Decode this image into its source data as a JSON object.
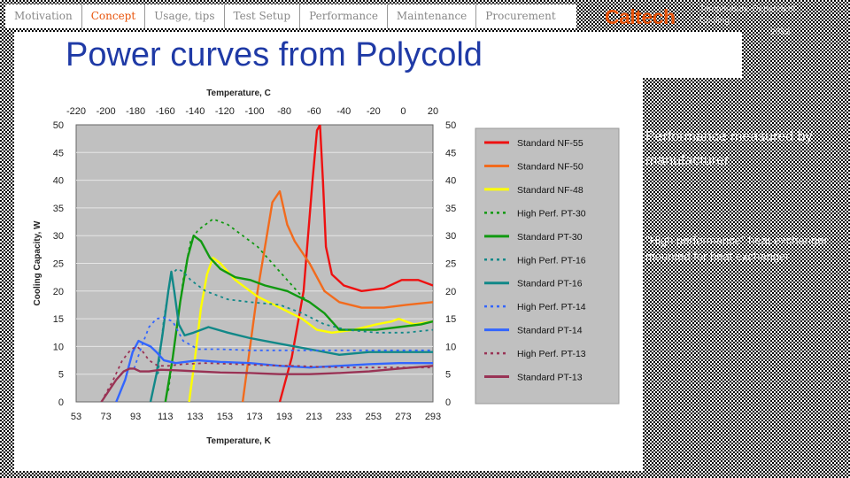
{
  "nav": {
    "tabs": [
      {
        "label": "Motivation",
        "active": false
      },
      {
        "label": "Concept",
        "active": true
      },
      {
        "label": "Usage, tips",
        "active": false
      },
      {
        "label": "Test Setup",
        "active": false
      },
      {
        "label": "Performance",
        "active": false
      },
      {
        "label": "Maintenance",
        "active": false
      },
      {
        "label": "Procurement",
        "active": false
      }
    ]
  },
  "header": {
    "logo": "Caltech",
    "meta_line1": "Temperature-Dependent",
    "meta_line2": "Cooling",
    "meta_line3": "2023"
  },
  "slide": {
    "title": "Power curves from Polycold",
    "note1": "Performance measured by manufacturer.",
    "note2": "\"High performance\" heat exchanger mounted for heat exchanger."
  },
  "colors": {
    "accent": "#e8530a",
    "title": "#1f3aa6",
    "plot_bg": "#c0c0c0",
    "legend_bg": "#c0c0c0"
  },
  "chart_data": {
    "type": "line",
    "title": "Temperature, C",
    "xlabel": "Temperature, K",
    "ylabel": "Cooling Capacity, W",
    "xlim": [
      53,
      293
    ],
    "ylim": [
      0,
      50
    ],
    "x_ticks": [
      53,
      73,
      93,
      113,
      133,
      153,
      173,
      193,
      213,
      233,
      253,
      273,
      293
    ],
    "top_ticks": [
      -220,
      -200,
      -180,
      -160,
      -140,
      -120,
      -100,
      -80,
      -60,
      -40,
      -20,
      0,
      20
    ],
    "y_ticks": [
      0,
      5,
      10,
      15,
      20,
      25,
      30,
      35,
      40,
      45,
      50
    ],
    "grid": true,
    "legend_position": "right",
    "series": [
      {
        "name": "Standard NF-55",
        "color": "#ee1111",
        "dash": false,
        "x": [
          190,
          198,
          206,
          212,
          215,
          217,
          219,
          221,
          225,
          233,
          245,
          260,
          272,
          283,
          293
        ],
        "y": [
          0,
          8,
          20,
          40,
          49,
          50,
          40,
          28,
          23,
          21,
          20,
          20.5,
          22,
          22,
          21
        ]
      },
      {
        "name": "Standard NF-50",
        "color": "#f26b1d",
        "dash": false,
        "x": [
          165,
          170,
          175,
          180,
          185,
          190,
          195,
          200,
          210,
          220,
          230,
          245,
          260,
          275,
          293
        ],
        "y": [
          0,
          10,
          20,
          28,
          36,
          38,
          32,
          29,
          25,
          20,
          18,
          17,
          17,
          17.5,
          18
        ]
      },
      {
        "name": "Standard NF-48",
        "color": "#ffff00",
        "dash": false,
        "x": [
          129,
          133,
          137,
          141,
          145,
          150,
          160,
          175,
          190,
          205,
          215,
          225,
          240,
          255,
          265,
          270,
          280,
          293
        ],
        "y": [
          0,
          8,
          17,
          23,
          26,
          25,
          22,
          19,
          17,
          15,
          13,
          12.5,
          13,
          14,
          14.5,
          15,
          14,
          14.5
        ]
      },
      {
        "name": "High Perf. PT-30",
        "color": "#119911",
        "dash": true,
        "x": [
          115,
          120,
          125,
          130,
          135,
          140,
          145,
          155,
          165,
          175,
          185,
          195,
          205,
          215
        ],
        "y": [
          2,
          12,
          22,
          29,
          31,
          32,
          33,
          32,
          30,
          28,
          25,
          22,
          19,
          17
        ]
      },
      {
        "name": "Standard PT-30",
        "color": "#119911",
        "dash": false,
        "x": [
          113,
          118,
          123,
          128,
          132,
          137,
          143,
          150,
          160,
          170,
          180,
          195,
          210,
          220,
          230,
          240,
          255,
          270,
          285,
          293
        ],
        "y": [
          0,
          8,
          18,
          26,
          30,
          29,
          26,
          24,
          22.5,
          22,
          21,
          20,
          18,
          16,
          13,
          13,
          13,
          13.5,
          14,
          14.5
        ]
      },
      {
        "name": "High Perf. PT-16",
        "color": "#118888",
        "dash": true,
        "x": [
          108,
          112,
          117,
          121,
          125,
          130,
          140,
          155,
          170,
          190,
          205,
          220,
          235,
          255,
          275,
          293
        ],
        "y": [
          5,
          15,
          23,
          24,
          23.5,
          22,
          20,
          18.5,
          18,
          17.5,
          16,
          14,
          13,
          12.5,
          12.5,
          13
        ]
      },
      {
        "name": "Standard PT-16",
        "color": "#118888",
        "dash": false,
        "x": [
          103,
          107,
          111,
          115,
          117,
          119,
          122,
          126,
          132,
          142,
          155,
          170,
          190,
          210,
          230,
          250,
          270,
          293
        ],
        "y": [
          0,
          5,
          12,
          20,
          23.5,
          20,
          14,
          12,
          12.5,
          13.5,
          12.5,
          11.5,
          10.5,
          9.5,
          8.5,
          9,
          9,
          9
        ]
      },
      {
        "name": "High Perf. PT-14",
        "color": "#3366ff",
        "dash": true,
        "x": [
          92,
          97,
          102,
          107,
          112,
          118,
          125,
          135,
          150,
          170,
          190,
          210,
          230,
          250,
          270,
          293
        ],
        "y": [
          6,
          10,
          13.5,
          15,
          15.2,
          14.5,
          11,
          9.5,
          9.5,
          9.3,
          9.3,
          9.3,
          9.3,
          9.3,
          9.3,
          9.3
        ]
      },
      {
        "name": "Standard PT-14",
        "color": "#3366ff",
        "dash": false,
        "x": [
          80,
          86,
          91,
          95,
          99,
          103,
          107,
          112,
          120,
          135,
          150,
          170,
          190,
          210,
          230,
          250,
          270,
          293
        ],
        "y": [
          0,
          4,
          9,
          11,
          10.5,
          10,
          9,
          7.5,
          7,
          7.5,
          7.2,
          7,
          6.5,
          6.2,
          6.5,
          6.8,
          7,
          7
        ]
      },
      {
        "name": "High Perf. PT-13",
        "color": "#993355",
        "dash": true,
        "x": [
          72,
          78,
          84,
          90,
          94,
          98,
          102,
          108,
          115,
          125,
          140,
          160,
          180,
          200,
          220,
          240,
          260,
          280,
          293
        ],
        "y": [
          1,
          4,
          7.5,
          9.5,
          10,
          9,
          7.5,
          6.5,
          6.5,
          6.8,
          7,
          6.8,
          6.6,
          6.5,
          6.3,
          6.2,
          6.2,
          6.2,
          6.2
        ]
      },
      {
        "name": "Standard PT-13",
        "color": "#993355",
        "dash": false,
        "x": [
          70,
          75,
          80,
          85,
          89,
          92,
          96,
          102,
          110,
          120,
          135,
          150,
          170,
          190,
          210,
          230,
          250,
          270,
          293
        ],
        "y": [
          0,
          2,
          4,
          5.5,
          6,
          6,
          5.5,
          5.5,
          5.8,
          5.7,
          5.5,
          5.3,
          5.2,
          5.0,
          5.0,
          5.2,
          5.5,
          6,
          6.5
        ]
      }
    ]
  }
}
